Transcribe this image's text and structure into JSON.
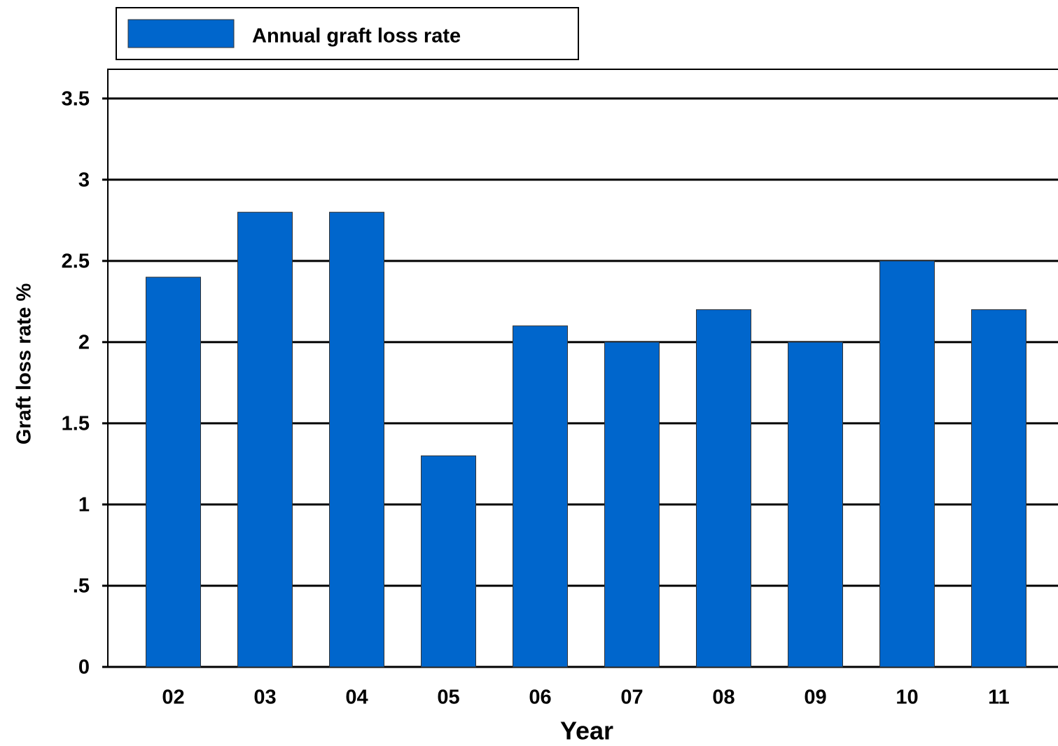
{
  "chart_data": {
    "type": "bar",
    "x_label": "Year",
    "y_label": "Graft loss rate %",
    "categories": [
      "02",
      "03",
      "04",
      "05",
      "06",
      "07",
      "08",
      "09",
      "10",
      "11"
    ],
    "series": [
      {
        "name": "Annual graft loss rate",
        "color": "#0066cc",
        "values": [
          2.4,
          2.8,
          2.8,
          1.3,
          2.1,
          2.0,
          2.2,
          2.0,
          2.5,
          2.2
        ]
      }
    ],
    "ylim": [
      0,
      3.68
    ],
    "yticks": [
      0,
      {
        "value": 0.5,
        "label": ".5"
      },
      1,
      1.5,
      2,
      2.5,
      3,
      3.5
    ],
    "grid": true,
    "legend": "top-left"
  }
}
